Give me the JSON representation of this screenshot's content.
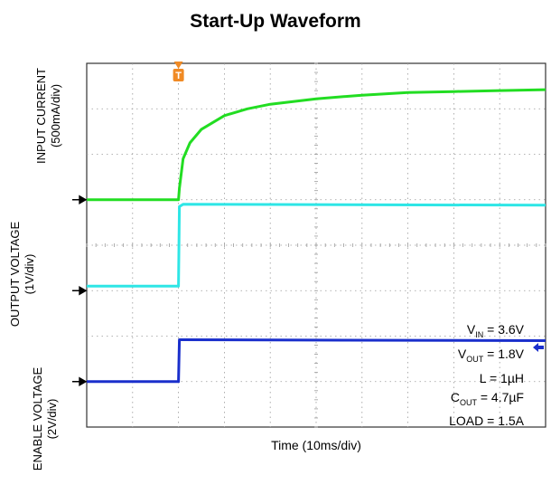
{
  "title": "Start-Up Waveform",
  "chart_data": {
    "type": "line",
    "title": "Start-Up Waveform",
    "xlabel": "Time (10ms/div)",
    "divisions": {
      "x": 10,
      "y": 8
    },
    "trigger_marker": "T",
    "trigger_time_div": 2.0,
    "ylabels": [
      {
        "name": "INPUT CURRENT",
        "scale": "(500mA/div)"
      },
      {
        "name": "OUTPUT VOLTAGE",
        "scale": "(1V/div)"
      },
      {
        "name": "ENABLE VOLTAGE",
        "scale": "(2V/div)"
      }
    ],
    "series": [
      {
        "name": "INPUT CURRENT",
        "color": "#22dd22",
        "ground_div": 5.0,
        "x": [
          0,
          2.0,
          2.02,
          2.1,
          2.25,
          2.5,
          3.0,
          3.5,
          4.0,
          5.0,
          6.0,
          7.0,
          8.0,
          9.0,
          10.0
        ],
        "y": [
          0,
          0,
          0.25,
          0.9,
          1.25,
          1.55,
          1.85,
          2.0,
          2.1,
          2.22,
          2.3,
          2.36,
          2.38,
          2.4,
          2.42
        ]
      },
      {
        "name": "OUTPUT VOLTAGE",
        "color": "#2ee6e6",
        "ground_div": 3.0,
        "x": [
          0,
          2.0,
          2.02,
          2.1,
          10.0
        ],
        "y": [
          0.1,
          0.1,
          1.85,
          1.9,
          1.88
        ]
      },
      {
        "name": "ENABLE VOLTAGE",
        "color": "#1a2fcc",
        "ground_div": 1.0,
        "x": [
          0,
          2.0,
          2.02,
          2.1,
          10.0
        ],
        "y": [
          0,
          0,
          0.92,
          0.92,
          0.9
        ]
      }
    ],
    "annotations": [
      {
        "label": "V",
        "sub": "IN",
        "value": " = 3.6V"
      },
      {
        "label": "V",
        "sub": "OUT",
        "value": " = 1.8V"
      },
      {
        "label": "L",
        "sub": "",
        "value": " = 1µH"
      },
      {
        "label": "C",
        "sub": "OUT",
        "value": " = 4.7µF"
      },
      {
        "label": "LOAD",
        "sub": "",
        "value": " = 1.5A"
      }
    ]
  }
}
